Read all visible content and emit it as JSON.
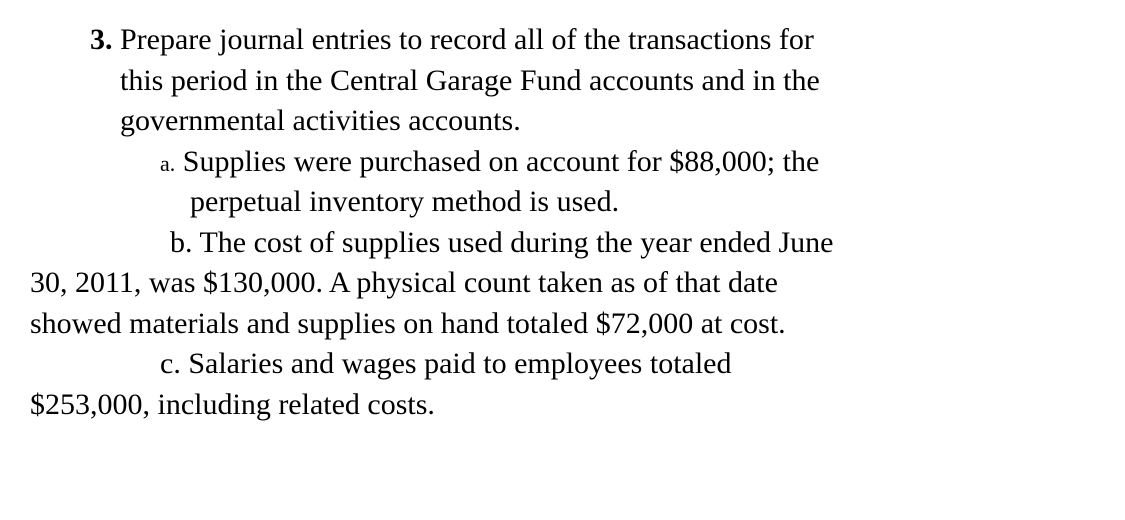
{
  "question": {
    "number": "3.",
    "line1": "Prepare journal entries to record all of the transactions for",
    "line2": "this period in the Central Garage Fund accounts and in the",
    "line3": "governmental activities accounts.",
    "items": {
      "a": {
        "marker": "a.",
        "line1": "Supplies were purchased on account for $88,000; the",
        "line2": "perpetual inventory method is used."
      },
      "b": {
        "marker": "b.",
        "line1": "The cost of supplies used during the year ended June",
        "line2": "30, 2011, was $130,000. A  physical count taken as of that date",
        "line3": "showed materials and supplies on hand totaled $72,000 at cost."
      },
      "c": {
        "marker": "c.",
        "line1": "Salaries and wages paid to employees totaled",
        "line2": "$253,000, including related costs."
      }
    }
  },
  "styling": {
    "background_color": "#ffffff",
    "text_color": "#000000",
    "font_family": "Times New Roman",
    "base_font_size": 30,
    "marker_font_size": 22,
    "number_font_weight": "bold",
    "line_height": 1.35
  }
}
